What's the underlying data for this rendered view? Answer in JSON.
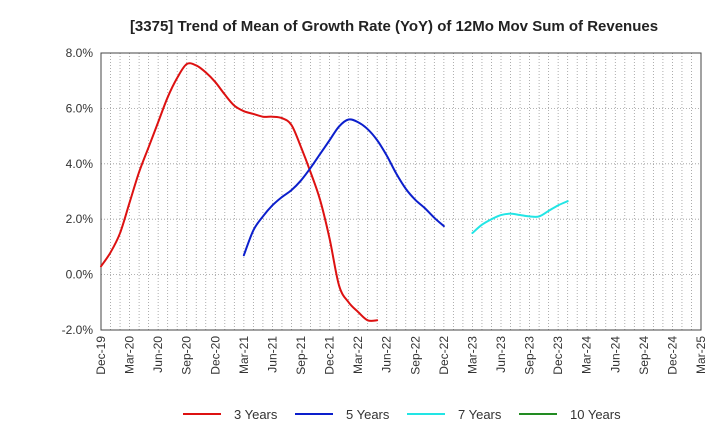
{
  "chart_data": {
    "type": "line",
    "title": "[3375]  Trend of Mean of Growth Rate (YoY) of 12Mo Mov Sum of Revenues",
    "xlabel": "",
    "ylabel": "",
    "ylim": [
      -2.0,
      8.0
    ],
    "y_ticks": [
      -2.0,
      0.0,
      2.0,
      4.0,
      6.0,
      8.0
    ],
    "y_tick_labels": [
      "-2.0%",
      "0.0%",
      "2.0%",
      "4.0%",
      "6.0%",
      "8.0%"
    ],
    "x_tick_labels": [
      "Dec-19",
      "Mar-20",
      "Jun-20",
      "Sep-20",
      "Dec-20",
      "Mar-21",
      "Jun-21",
      "Sep-21",
      "Dec-21",
      "Mar-22",
      "Jun-22",
      "Sep-22",
      "Dec-22",
      "Mar-23",
      "Jun-23",
      "Sep-23",
      "Dec-23",
      "Mar-24",
      "Jun-24",
      "Sep-24",
      "Dec-24",
      "Mar-25"
    ],
    "grid": true,
    "legend_position": "bottom",
    "series": [
      {
        "name": "3 Years",
        "color": "#dd1111",
        "start_index": 0,
        "values": [
          0.3,
          0.8,
          1.5,
          2.6,
          3.7,
          4.6,
          5.5,
          6.4,
          7.1,
          7.6,
          7.55,
          7.3,
          6.95,
          6.5,
          6.1,
          5.9,
          5.8,
          5.7,
          5.7,
          5.65,
          5.4,
          4.6,
          3.7,
          2.7,
          1.3,
          -0.4,
          -1.0,
          -1.35,
          -1.65,
          -1.65
        ]
      },
      {
        "name": "5 Years",
        "color": "#0c1fcc",
        "start_index": 15,
        "values": [
          0.7,
          1.6,
          2.1,
          2.5,
          2.8,
          3.05,
          3.4,
          3.85,
          4.35,
          4.85,
          5.35,
          5.6,
          5.5,
          5.25,
          4.85,
          4.3,
          3.65,
          3.1,
          2.7,
          2.4,
          2.05,
          1.75
        ]
      },
      {
        "name": "7 Years",
        "color": "#22e5e5",
        "start_index": 39,
        "values": [
          1.5,
          1.8,
          2.0,
          2.15,
          2.2,
          2.15,
          2.1,
          2.1,
          2.3,
          2.5,
          2.65
        ]
      },
      {
        "name": "10 Years",
        "color": "#228b22",
        "start_index": 0,
        "values": []
      }
    ]
  }
}
